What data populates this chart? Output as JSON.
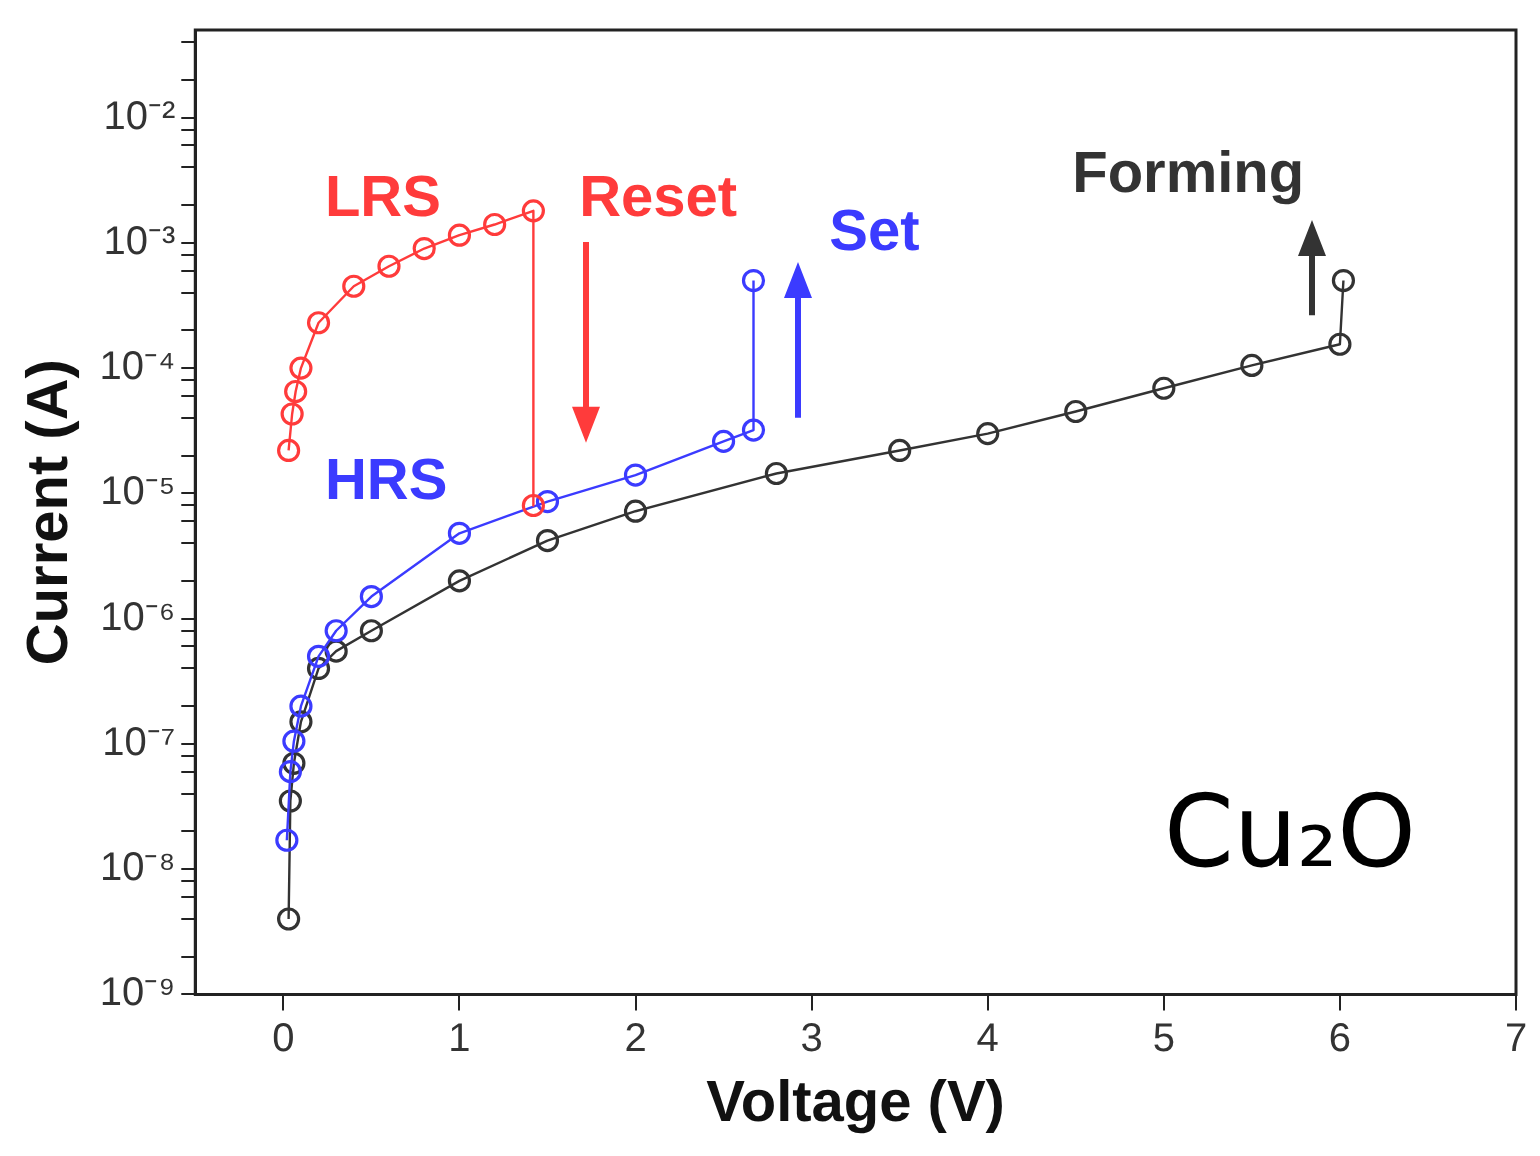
{
  "chart_data": {
    "type": "line",
    "xlabel": "Voltage (V)",
    "ylabel": "Current (A)",
    "log": "y",
    "marker": "circle",
    "grid": false,
    "legend": false,
    "xlim": [
      -0.5,
      7
    ],
    "xticks": [
      0,
      1,
      2,
      3,
      4,
      5,
      6,
      7
    ],
    "ylim": [
      1e-09,
      0.05
    ],
    "yticks": [
      {
        "value": 1e-09,
        "label": "10⁻⁹"
      },
      {
        "value": 2e-09,
        "label": null
      },
      {
        "value": 4e-09,
        "label": null
      },
      {
        "value": 6e-09,
        "label": null
      },
      {
        "value": 8e-09,
        "label": null
      },
      {
        "value": 1e-08,
        "label": "10⁻⁸"
      },
      {
        "value": 2e-08,
        "label": null
      },
      {
        "value": 4e-08,
        "label": null
      },
      {
        "value": 6e-08,
        "label": null
      },
      {
        "value": 8e-08,
        "label": null
      },
      {
        "value": 1e-07,
        "label": "10⁻⁷"
      },
      {
        "value": 2e-07,
        "label": null
      },
      {
        "value": 4e-07,
        "label": null
      },
      {
        "value": 6e-07,
        "label": null
      },
      {
        "value": 8e-07,
        "label": null
      },
      {
        "value": 1e-06,
        "label": "10⁻⁶"
      },
      {
        "value": 2e-06,
        "label": null
      },
      {
        "value": 4e-06,
        "label": null
      },
      {
        "value": 6e-06,
        "label": null
      },
      {
        "value": 8e-06,
        "label": null
      },
      {
        "value": 1e-05,
        "label": "10⁻⁵"
      },
      {
        "value": 2e-05,
        "label": null
      },
      {
        "value": 4e-05,
        "label": null
      },
      {
        "value": 6e-05,
        "label": null
      },
      {
        "value": 8e-05,
        "label": null
      },
      {
        "value": 0.0001,
        "label": "10⁻⁴"
      },
      {
        "value": 0.0002,
        "label": null
      },
      {
        "value": 0.0004,
        "label": null
      },
      {
        "value": 0.0006,
        "label": null
      },
      {
        "value": 0.0008,
        "label": null
      },
      {
        "value": 0.001,
        "label": "10⁻³"
      },
      {
        "value": 0.002,
        "label": null
      },
      {
        "value": 0.004,
        "label": null
      },
      {
        "value": 0.006,
        "label": null
      },
      {
        "value": 0.008,
        "label": null
      },
      {
        "value": 0.01,
        "label": "10⁻²"
      },
      {
        "value": 0.02,
        "label": null
      },
      {
        "value": 0.04,
        "label": null
      }
    ],
    "series": [
      {
        "name": "LRS",
        "color": "#ff3b3b",
        "x": [
          0.03,
          0.05,
          0.07,
          0.1,
          0.2,
          0.4,
          0.6,
          0.8,
          1,
          1.2,
          1.42,
          1.42
        ],
        "values": [
          2.2e-05,
          4.3e-05,
          6.5e-05,
          0.0001,
          0.00023,
          0.00045,
          0.00065,
          0.0009,
          0.00115,
          0.0014,
          0.0018,
          8e-06
        ]
      },
      {
        "name": "HRS",
        "color": "#3b3bff",
        "x": [
          0.02,
          0.04,
          0.06,
          0.1,
          0.2,
          0.3,
          0.5,
          1,
          1.5,
          2,
          2.5,
          2.67,
          2.67
        ],
        "values": [
          1.7e-08,
          6e-08,
          1.05e-07,
          2e-07,
          5e-07,
          8e-07,
          1.5e-06,
          4.8e-06,
          8.6e-06,
          1.4e-05,
          2.6e-05,
          3.2e-05,
          0.0005
        ]
      },
      {
        "color": "#333333",
        "x": [
          0.03,
          0.04,
          0.06,
          0.1,
          0.2,
          0.3,
          0.5,
          1,
          1.5,
          2,
          2.8,
          3.5,
          4,
          4.5,
          5,
          5.5,
          6,
          6.02
        ],
        "values": [
          4e-09,
          3.5e-08,
          7e-08,
          1.5e-07,
          4e-07,
          5.5e-07,
          8e-07,
          2e-06,
          4.2e-06,
          7.2e-06,
          1.44e-05,
          2.2e-05,
          3e-05,
          4.5e-05,
          6.9e-05,
          0.000105,
          0.000155,
          0.0005
        ]
      }
    ],
    "annotations": [
      "Reset",
      "Set",
      "Forming",
      "Cu₂O"
    ]
  }
}
